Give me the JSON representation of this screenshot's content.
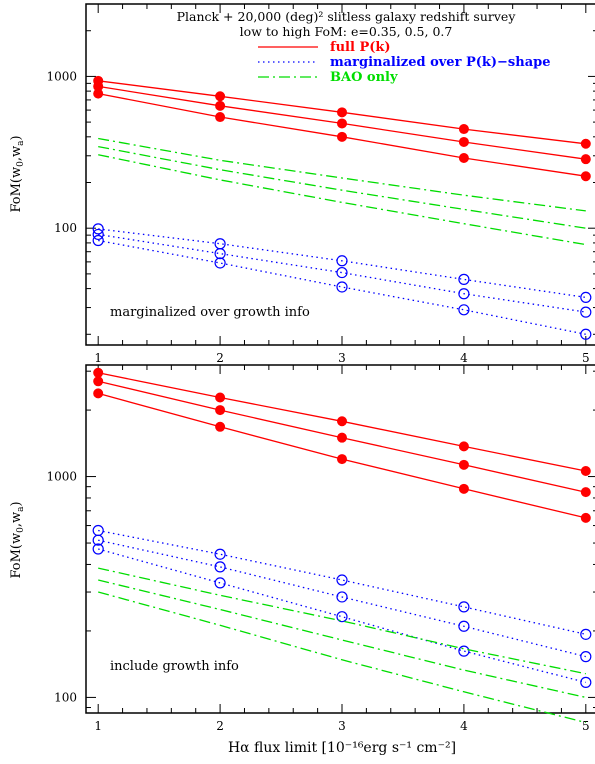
{
  "header": {
    "title": "Planck + 20,000 (deg)² slitless galaxy redshift survey",
    "subtitle": "low to high FoM: e=0.35, 0.5, 0.7"
  },
  "colors": {
    "full": "#ff0000",
    "marg": "#0000ff",
    "bao": "#00dd00",
    "axes": "#000000"
  },
  "xlabel": "Hα flux limit [10⁻¹⁶erg s⁻¹ cm⁻²]",
  "chart_data": [
    {
      "type": "line",
      "id": "top",
      "scale": "log-y",
      "ylabel": "FoM(w0,wa)",
      "annotation": "marginalized over growth info",
      "xlim": [
        0.9,
        5.1
      ],
      "ylim": [
        17,
        3000
      ],
      "x": [
        1,
        2,
        3,
        4,
        5
      ],
      "x_ticks": [
        "1",
        "2",
        "3",
        "4",
        "5"
      ],
      "y_ticks": [
        {
          "value": 100,
          "label": "100"
        },
        {
          "value": 1000,
          "label": "1000"
        }
      ],
      "legend": [
        {
          "label": "full P(k)",
          "style": "solid",
          "color": "#ff0000"
        },
        {
          "label": "marginalized over P(k)−shape",
          "style": "dotted",
          "color": "#0000ff"
        },
        {
          "label": "BAO only",
          "style": "dashdot",
          "color": "#00dd00"
        }
      ],
      "series": [
        {
          "group": "full",
          "style": "solid",
          "marker": "filled",
          "values": [
            770,
            540,
            400,
            290,
            220
          ]
        },
        {
          "group": "full",
          "style": "solid",
          "marker": "filled",
          "values": [
            860,
            640,
            490,
            370,
            285
          ]
        },
        {
          "group": "full",
          "style": "solid",
          "marker": "filled",
          "values": [
            935,
            740,
            580,
            450,
            360
          ]
        },
        {
          "group": "marg",
          "style": "dotted",
          "marker": "open",
          "values": [
            83,
            59,
            41,
            29,
            20
          ]
        },
        {
          "group": "marg",
          "style": "dotted",
          "marker": "open",
          "values": [
            91,
            68,
            51,
            37,
            28
          ]
        },
        {
          "group": "marg",
          "style": "dotted",
          "marker": "open",
          "values": [
            99,
            79,
            61,
            46,
            35
          ]
        },
        {
          "group": "bao",
          "style": "dashdot",
          "marker": "none",
          "values": [
            305,
            208,
            148,
            107,
            78
          ]
        },
        {
          "group": "bao",
          "style": "dashdot",
          "marker": "none",
          "values": [
            345,
            243,
            178,
            133,
            100
          ]
        },
        {
          "group": "bao",
          "style": "dashdot",
          "marker": "none",
          "values": [
            390,
            280,
            214,
            165,
            130
          ]
        }
      ]
    },
    {
      "type": "line",
      "id": "bottom",
      "scale": "log-y",
      "ylabel": "FoM(w0,wa)",
      "annotation": "include growth info",
      "xlim": [
        0.9,
        5.1
      ],
      "ylim": [
        85,
        3200
      ],
      "x": [
        1,
        2,
        3,
        4,
        5
      ],
      "x_ticks": [
        "1",
        "2",
        "3",
        "4",
        "5"
      ],
      "y_ticks": [
        {
          "value": 100,
          "label": "100"
        },
        {
          "value": 1000,
          "label": "1000"
        }
      ],
      "series": [
        {
          "group": "full",
          "style": "solid",
          "marker": "filled",
          "values": [
            2380,
            1680,
            1200,
            880,
            650
          ]
        },
        {
          "group": "full",
          "style": "solid",
          "marker": "filled",
          "values": [
            2700,
            2000,
            1500,
            1130,
            850
          ]
        },
        {
          "group": "full",
          "style": "solid",
          "marker": "filled",
          "values": [
            2950,
            2280,
            1780,
            1370,
            1060
          ]
        },
        {
          "group": "marg",
          "style": "dotted",
          "marker": "open",
          "values": [
            470,
            330,
            232,
            162,
            117
          ]
        },
        {
          "group": "marg",
          "style": "dotted",
          "marker": "open",
          "values": [
            515,
            390,
            285,
            210,
            153
          ]
        },
        {
          "group": "marg",
          "style": "dotted",
          "marker": "open",
          "values": [
            570,
            445,
            340,
            257,
            193
          ]
        },
        {
          "group": "bao",
          "style": "dashdot",
          "marker": "none",
          "values": [
            300,
            212,
            148,
            106,
            77
          ]
        },
        {
          "group": "bao",
          "style": "dashdot",
          "marker": "none",
          "values": [
            340,
            250,
            182,
            133,
            100
          ]
        },
        {
          "group": "bao",
          "style": "dashdot",
          "marker": "none",
          "values": [
            385,
            290,
            222,
            166,
            128
          ]
        }
      ]
    }
  ]
}
